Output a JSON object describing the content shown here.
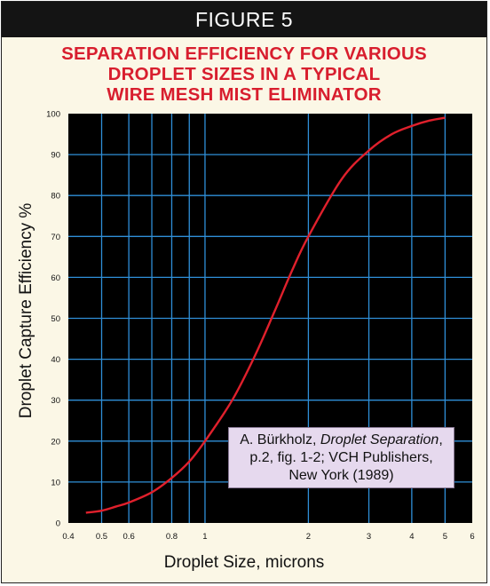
{
  "header": {
    "figure_label": "FIGURE 5"
  },
  "chart_data": {
    "type": "line",
    "title": "SEPARATION EFFICIENCY FOR VARIOUS\nDROPLET SIZES IN A TYPICAL\nWIRE MESH MIST ELIMINATOR",
    "xlabel": "Droplet Size, microns",
    "ylabel": "Droplet Capture Efficiency  %",
    "x_scale": "log",
    "xlim": [
      0.4,
      6
    ],
    "ylim": [
      0,
      100
    ],
    "grid": true,
    "colors": {
      "plot_background": "#000000",
      "grid": "#2f8fd8",
      "curve": "#e0202c",
      "title": "#d81e2e",
      "annotation_box": "#e6d9ee"
    },
    "x_ticks": [
      {
        "value": 0.4,
        "label": "0.4"
      },
      {
        "value": 0.5,
        "label": "0.5"
      },
      {
        "value": 0.6,
        "label": "0.6"
      },
      {
        "value": 0.8,
        "label": "0.8"
      },
      {
        "value": 1,
        "label": "1"
      },
      {
        "value": 2,
        "label": "2"
      },
      {
        "value": 3,
        "label": "3"
      },
      {
        "value": 4,
        "label": "4"
      },
      {
        "value": 5,
        "label": "5"
      },
      {
        "value": 6,
        "label": "6"
      }
    ],
    "x_grid": [
      0.5,
      0.6,
      0.7,
      0.8,
      0.9,
      1,
      2,
      3,
      4,
      5
    ],
    "y_ticks": [
      0,
      10,
      20,
      30,
      40,
      50,
      60,
      70,
      80,
      90,
      100
    ],
    "series": [
      {
        "x": [
          0.45,
          0.5,
          0.55,
          0.6,
          0.7,
          0.8,
          0.9,
          1.0,
          1.2,
          1.4,
          1.6,
          1.8,
          2.0,
          2.5,
          3.0,
          3.5,
          4.0,
          4.5,
          5.0
        ],
        "y": [
          2.5,
          3,
          4,
          5,
          7.5,
          11,
          15,
          20,
          30,
          41,
          52,
          62,
          70,
          84,
          91,
          95,
          97,
          98.3,
          99
        ]
      }
    ],
    "annotation": {
      "author": "A. Bürkholz, ",
      "book_title": "Droplet Separation",
      "rest_line1": ",",
      "line2": "p.2, fig. 1-2; VCH Publishers,",
      "line3": "New York (1989)"
    }
  }
}
